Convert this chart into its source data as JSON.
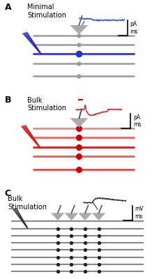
{
  "panel_A": {
    "label": "A",
    "title": "Minimal\nStimulation",
    "stim_color": "#3333bb",
    "line_active_color": "#4444cc",
    "line_inactive_color": "#999999",
    "dot_active_color": "#2233cc",
    "dot_inactive_color": "#999999",
    "trace_color": "#3355cc",
    "scale_label": "pA\nms"
  },
  "panel_B": {
    "label": "B",
    "title": "Bulk\nStimulation",
    "stim_color": "#cc2222",
    "line_active_color": "#ee5555",
    "line_inactive_color": "#ee8888",
    "dot_active_color": "#cc0000",
    "trace_color": "#cc2222",
    "scale_label": "pA\nms"
  },
  "panel_C": {
    "label": "C",
    "title": "Bulk\nStimulation",
    "stim_color": "#333333",
    "line_color": "#888888",
    "dot_color": "#222222",
    "trace_color": "#222222",
    "scale_label": "mV\nms"
  },
  "bg_color": "#ffffff"
}
